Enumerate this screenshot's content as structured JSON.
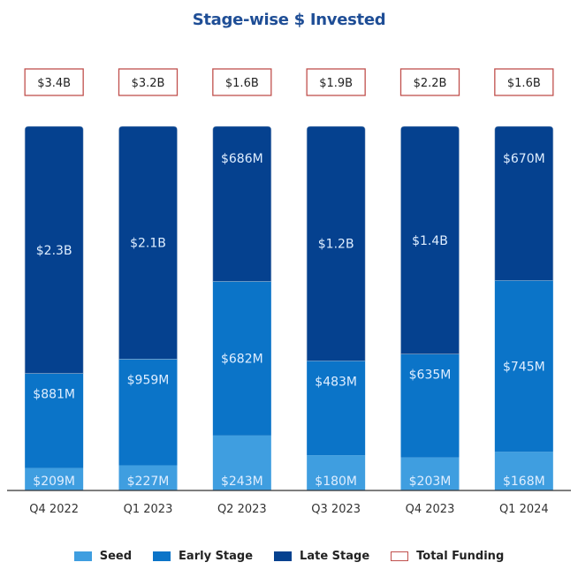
{
  "chart_data": {
    "type": "bar",
    "stacked": "percent",
    "title": "Stage-wise $ Invested",
    "xlabel": "",
    "ylabel": "",
    "categories": [
      "Q4 2022",
      "Q1 2023",
      "Q2 2023",
      "Q3 2023",
      "Q4 2023",
      "Q1 2024"
    ],
    "series": [
      {
        "name": "Seed",
        "color": "#3f9ee0",
        "values_musd": [
          209,
          227,
          243,
          180,
          203,
          168
        ],
        "labels": [
          "$209M",
          "$227M",
          "$243M",
          "$180M",
          "$203M",
          "$168M"
        ]
      },
      {
        "name": "Early Stage",
        "color": "#0b74c8",
        "values_musd": [
          881,
          959,
          682,
          483,
          635,
          745
        ],
        "labels": [
          "$881M",
          "$959M",
          "$682M",
          "$483M",
          "$635M",
          "$745M"
        ]
      },
      {
        "name": "Late Stage",
        "color": "#05418f",
        "values_musd": [
          2300,
          2100,
          686,
          1200,
          1400,
          670
        ],
        "labels": [
          "$2.3B",
          "$2.1B",
          "$686M",
          "$1.2B",
          "$1.4B",
          "$670M"
        ]
      }
    ],
    "totals": {
      "name": "Total Funding",
      "border_color": "#c0504d",
      "values_busd": [
        3.4,
        3.2,
        1.6,
        1.9,
        2.2,
        1.6
      ],
      "labels": [
        "$3.4B",
        "$3.2B",
        "$1.6B",
        "$1.9B",
        "$2.2B",
        "$1.6B"
      ]
    },
    "grid": false,
    "legend_position": "bottom-center",
    "title_color": "#1f4e96"
  }
}
